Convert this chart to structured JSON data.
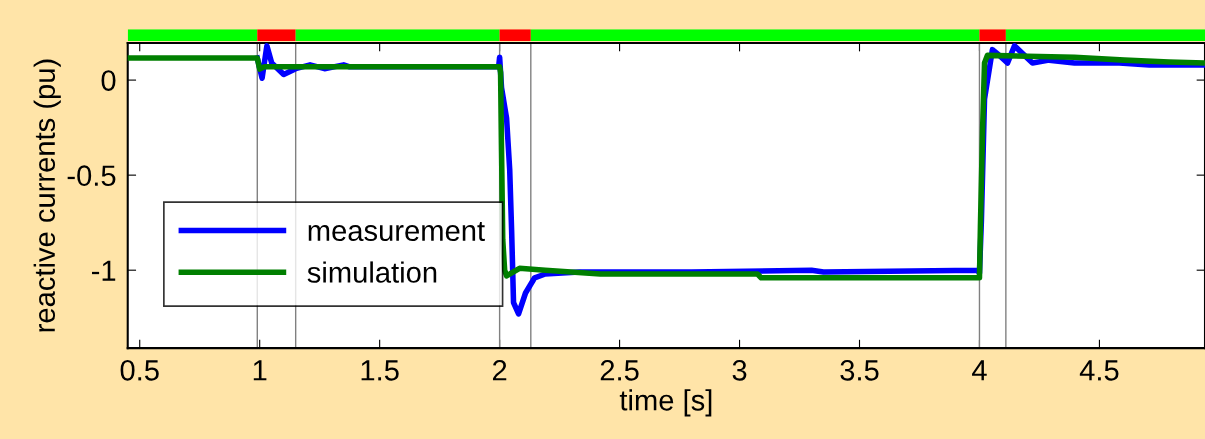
{
  "chart_data": {
    "type": "line",
    "xlabel": "time [s]",
    "ylabel": "reactive currents (pu)",
    "xlim": [
      0.45,
      4.94
    ],
    "ylim": [
      -1.41,
      0.195
    ],
    "xticks": [
      0.5,
      1,
      1.5,
      2,
      2.5,
      3,
      3.5,
      4,
      4.5
    ],
    "yticks": [
      {
        "value": -1,
        "label": "-1"
      },
      {
        "value": -0.5,
        "label": "-0.5"
      },
      0
    ],
    "grid": false,
    "legend": "bottom left",
    "marker": "none",
    "line_style": "solid",
    "series": [
      {
        "name": "measurement",
        "color": "#0000ff",
        "x": [
          0.99,
          1.01,
          1.03,
          1.05,
          1.1,
          1.15,
          1.21,
          1.27,
          1.35,
          1.375,
          1.996,
          2.0,
          2.008,
          2.029,
          2.042,
          2.05,
          2.058,
          2.079,
          2.108,
          2.146,
          2.19,
          2.333,
          2.8,
          3.3,
          3.35,
          3.99,
          4.0,
          4.008,
          4.021,
          4.054,
          4.083,
          4.117,
          4.146,
          4.221,
          4.29,
          4.396,
          4.583,
          4.708,
          4.94
        ],
        "values": [
          0.116,
          0.01,
          0.18,
          0.09,
          0.03,
          0.06,
          0.08,
          0.06,
          0.08,
          0.07,
          0.07,
          0.12,
          -0.04,
          -0.2,
          -0.47,
          -0.79,
          -1.17,
          -1.23,
          -1.12,
          -1.04,
          -1.02,
          -1.01,
          -1.01,
          -1.0,
          -1.01,
          -1.0,
          -1.015,
          -0.74,
          -0.1,
          0.16,
          0.13,
          0.09,
          0.18,
          0.09,
          0.105,
          0.09,
          0.09,
          0.08,
          0.08
        ]
      },
      {
        "name": "simulation",
        "color": "#007f00",
        "x": [
          0.45,
          0.99,
          1.0,
          1.02,
          2.0,
          2.004,
          2.008,
          2.013,
          2.021,
          2.029,
          2.083,
          2.19,
          2.42,
          3.075,
          3.09,
          4.0,
          4.004,
          4.013,
          4.021,
          4.033,
          4.396,
          4.604,
          4.79,
          4.94
        ],
        "values": [
          0.116,
          0.116,
          0.058,
          0.07,
          0.07,
          0.04,
          -0.37,
          -0.84,
          -1.0,
          -1.03,
          -0.99,
          -1.0,
          -1.02,
          -1.02,
          -1.04,
          -1.04,
          -0.77,
          -0.26,
          0.09,
          0.13,
          0.12,
          0.105,
          0.095,
          0.09
        ]
      }
    ],
    "ref_lines": [
      {
        "axis": "x",
        "value": 0.99,
        "color": "#808080"
      },
      {
        "axis": "x",
        "value": 1.15,
        "color": "#808080"
      },
      {
        "axis": "x",
        "value": 2.0,
        "color": "#808080"
      },
      {
        "axis": "x",
        "value": 2.13,
        "color": "#808080"
      },
      {
        "axis": "x",
        "value": 4.0,
        "color": "#808080"
      },
      {
        "axis": "x",
        "value": 4.11,
        "color": "#808080"
      }
    ]
  }
}
